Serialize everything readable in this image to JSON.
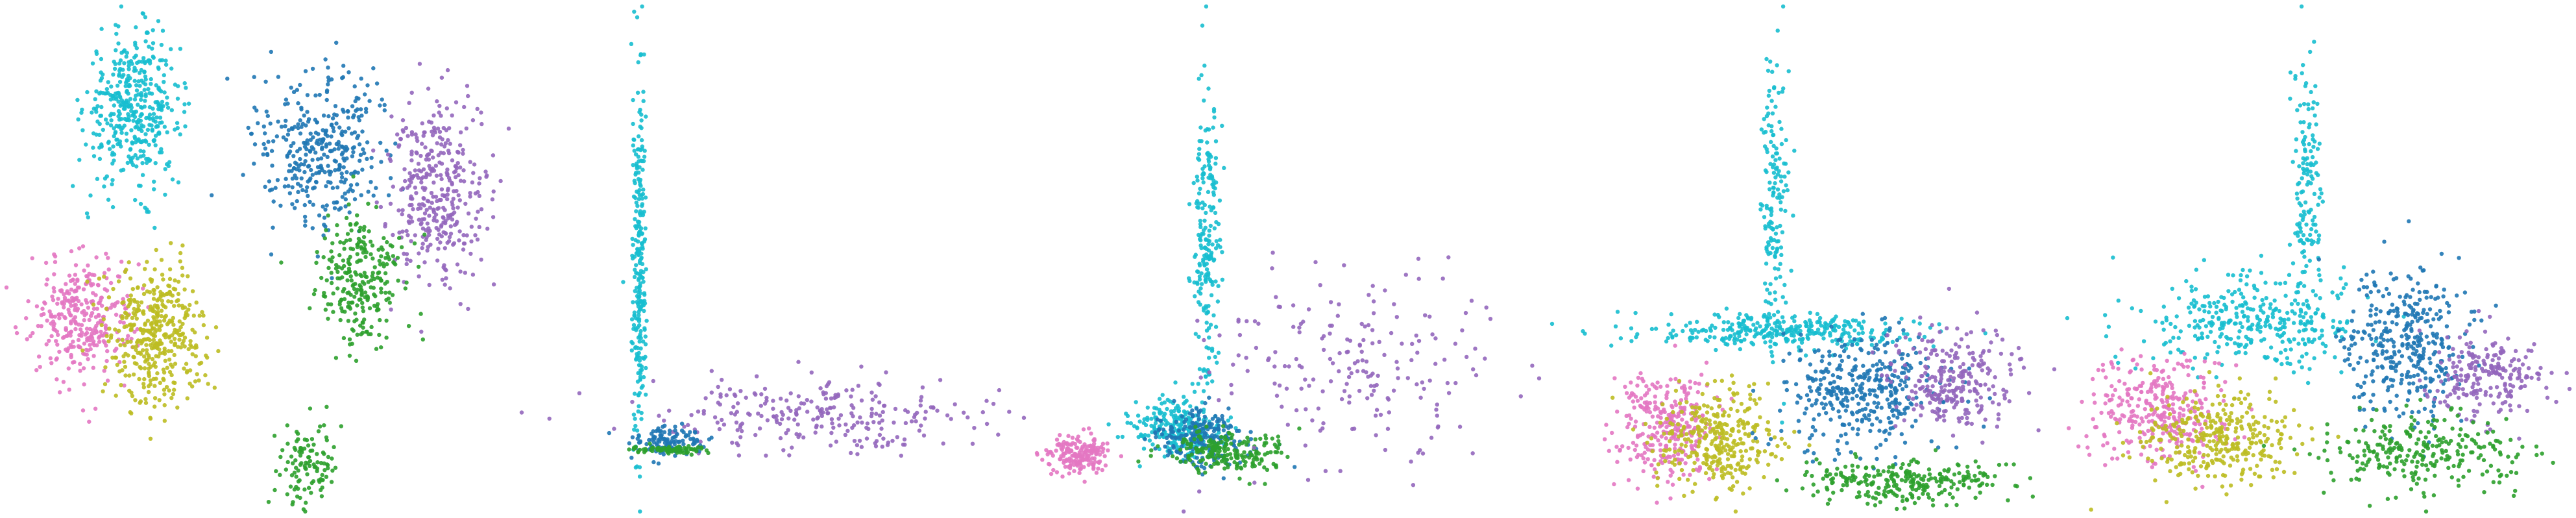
{
  "colors": {
    "c1": "#17becf",
    "c2": "#1f77b4",
    "c3": "#9467bd",
    "c4": "#2ca02c",
    "c5": "#e377c2",
    "c6": "#bcbd22"
  },
  "chart_data": [
    {
      "type": "scatter",
      "title": "",
      "xlabel": "",
      "ylabel": "",
      "axes_visible": false,
      "grid": false,
      "legend": "none",
      "clusters": [
        {
          "color_key": "c1",
          "center": [
            2.4,
            2.1
          ],
          "spread": [
            1.0,
            1.2
          ],
          "count": 420
        },
        {
          "color_key": "c5",
          "center": [
            1.3,
            -1.2
          ],
          "spread": [
            1.1,
            1.0
          ],
          "count": 320
        },
        {
          "color_key": "c6",
          "center": [
            2.9,
            -1.5
          ],
          "spread": [
            1.0,
            1.1
          ],
          "count": 420
        },
        {
          "color_key": "c2",
          "center": [
            6.4,
            1.5
          ],
          "spread": [
            1.5,
            1.3
          ],
          "count": 360
        },
        {
          "color_key": "c3",
          "center": [
            8.8,
            0.8
          ],
          "spread": [
            1.0,
            1.4
          ],
          "count": 360
        },
        {
          "color_key": "c4",
          "center": [
            7.2,
            -0.6
          ],
          "spread": [
            0.9,
            1.0
          ],
          "count": 260
        },
        {
          "color_key": "c4",
          "center": [
            6.1,
            -3.6
          ],
          "spread": [
            0.6,
            0.8
          ],
          "count": 110
        }
      ]
    },
    {
      "type": "scatter",
      "title": "",
      "xlabel": "",
      "ylabel": "",
      "axes_visible": false,
      "grid": false,
      "legend": "none",
      "clusters": [
        {
          "color_key": "c1",
          "center": [
            0.05,
            4.5
          ],
          "spread": [
            0.05,
            4.4
          ],
          "count": 260
        },
        {
          "color_key": "c3",
          "center": [
            1.4,
            0.9
          ],
          "spread": [
            1.3,
            0.9
          ],
          "count": 260
        },
        {
          "color_key": "c2",
          "center": [
            0.25,
            0.3
          ],
          "spread": [
            0.25,
            0.3
          ],
          "count": 120
        },
        {
          "color_key": "c4",
          "center": [
            0.3,
            0.1
          ],
          "spread": [
            0.3,
            0.1
          ],
          "count": 80
        }
      ]
    },
    {
      "type": "scatter",
      "title": "",
      "xlabel": "",
      "ylabel": "",
      "axes_visible": false,
      "grid": false,
      "legend": "none",
      "clusters": [
        {
          "color_key": "c1",
          "center": [
            3.2,
            4.6
          ],
          "spread": [
            0.25,
            3.3
          ],
          "count": 220
        },
        {
          "color_key": "c1",
          "center": [
            2.6,
            0.9
          ],
          "spread": [
            0.9,
            0.6
          ],
          "count": 240
        },
        {
          "color_key": "c5",
          "center": [
            0.6,
            0.35
          ],
          "spread": [
            0.6,
            0.35
          ],
          "count": 180
        },
        {
          "color_key": "c2",
          "center": [
            3.1,
            0.7
          ],
          "spread": [
            0.9,
            0.6
          ],
          "count": 220
        },
        {
          "color_key": "c4",
          "center": [
            3.6,
            0.4
          ],
          "spread": [
            1.2,
            0.4
          ],
          "count": 200
        },
        {
          "color_key": "c3",
          "center": [
            6.2,
            2.2
          ],
          "spread": [
            2.8,
            2.0
          ],
          "count": 200
        }
      ]
    },
    {
      "type": "scatter",
      "title": "",
      "xlabel": "",
      "ylabel": "",
      "axes_visible": false,
      "grid": false,
      "legend": "none",
      "clusters": [
        {
          "color_key": "c1",
          "center": [
            3.0,
            4.3
          ],
          "spread": [
            0.25,
            2.5
          ],
          "count": 160
        },
        {
          "color_key": "c1",
          "center": [
            3.2,
            2.2
          ],
          "spread": [
            2.6,
            0.3
          ],
          "count": 320
        },
        {
          "color_key": "c5",
          "center": [
            1.0,
            0.6
          ],
          "spread": [
            0.9,
            0.9
          ],
          "count": 300
        },
        {
          "color_key": "c6",
          "center": [
            2.0,
            0.4
          ],
          "spread": [
            1.1,
            0.8
          ],
          "count": 320
        },
        {
          "color_key": "c2",
          "center": [
            4.6,
            1.2
          ],
          "spread": [
            1.4,
            1.0
          ],
          "count": 380
        },
        {
          "color_key": "c3",
          "center": [
            6.3,
            1.4
          ],
          "spread": [
            1.2,
            0.9
          ],
          "count": 260
        },
        {
          "color_key": "c4",
          "center": [
            5.4,
            -0.3
          ],
          "spread": [
            1.8,
            0.35
          ],
          "count": 260
        }
      ]
    },
    {
      "type": "scatter",
      "title": "",
      "xlabel": "",
      "ylabel": "",
      "axes_visible": false,
      "grid": false,
      "legend": "none",
      "clusters": [
        {
          "color_key": "c1",
          "center": [
            3.3,
            4.4
          ],
          "spread": [
            0.2,
            2.6
          ],
          "count": 160
        },
        {
          "color_key": "c1",
          "center": [
            2.6,
            2.2
          ],
          "spread": [
            1.4,
            0.8
          ],
          "count": 320
        },
        {
          "color_key": "c5",
          "center": [
            1.4,
            0.6
          ],
          "spread": [
            0.9,
            1.0
          ],
          "count": 320
        },
        {
          "color_key": "c6",
          "center": [
            2.2,
            0.1
          ],
          "spread": [
            1.0,
            0.8
          ],
          "count": 320
        },
        {
          "color_key": "c2",
          "center": [
            4.5,
            1.8
          ],
          "spread": [
            0.8,
            1.4
          ],
          "count": 360
        },
        {
          "color_key": "c3",
          "center": [
            5.6,
            1.2
          ],
          "spread": [
            0.7,
            0.8
          ],
          "count": 220
        },
        {
          "color_key": "c4",
          "center": [
            4.8,
            -0.2
          ],
          "spread": [
            1.4,
            0.7
          ],
          "count": 260
        }
      ]
    }
  ]
}
